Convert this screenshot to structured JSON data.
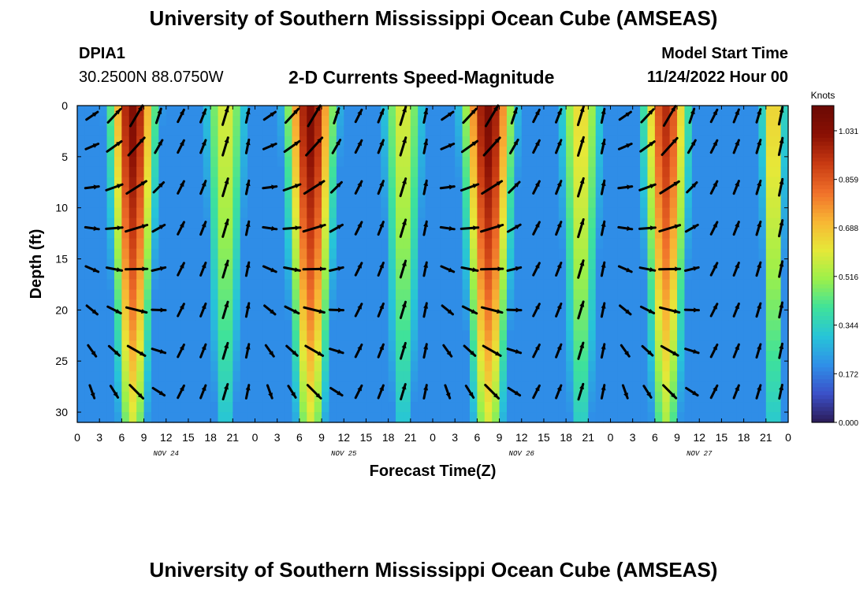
{
  "title": "University of Southern Mississippi Ocean Cube (AMSEAS)",
  "station": {
    "id": "DPIA1",
    "location": "30.2500N  88.0750W"
  },
  "subtitle": "2-D Currents Speed-Magnitude",
  "model_start": {
    "label": "Model Start Time",
    "value": "11/24/2022 Hour 00"
  },
  "footer_title": "University of Southern Mississippi Ocean Cube (AMSEAS)",
  "chart_data": {
    "type": "heatmap",
    "title": "2-D Currents Speed-Magnitude",
    "xlabel": "Forecast Time(Z)",
    "ylabel": "Depth (ft)",
    "xlim": [
      0,
      96
    ],
    "ylim": [
      0,
      31
    ],
    "x_ticks": [
      0,
      3,
      6,
      9,
      12,
      15,
      18,
      21,
      24,
      27,
      30,
      33,
      36,
      39,
      42,
      45,
      48,
      51,
      54,
      57,
      60,
      63,
      66,
      69,
      72,
      75,
      78,
      81,
      84,
      87,
      90,
      93,
      96
    ],
    "x_tick_labels": [
      "0",
      "3",
      "6",
      "9",
      "12",
      "15",
      "18",
      "21",
      "0",
      "3",
      "6",
      "9",
      "12",
      "15",
      "18",
      "21",
      "0",
      "3",
      "6",
      "9",
      "12",
      "15",
      "18",
      "21",
      "0",
      "3",
      "6",
      "9",
      "12",
      "15",
      "18",
      "21",
      "0"
    ],
    "y_ticks": [
      0,
      5,
      10,
      15,
      20,
      25,
      30
    ],
    "y_tick_labels": [
      "0",
      "5",
      "10",
      "15",
      "20",
      "25",
      "30"
    ],
    "day_labels": [
      {
        "hour": 12,
        "label": "NOV 24"
      },
      {
        "hour": 36,
        "label": "NOV 25"
      },
      {
        "hour": 60,
        "label": "NOV 26"
      },
      {
        "hour": 84,
        "label": "NOV 27"
      }
    ],
    "colorbar": {
      "title": "Knots",
      "min": 0.0,
      "max": 1.12,
      "ticks": [
        0.0,
        0.172,
        0.344,
        0.516,
        0.688,
        0.859,
        1.031
      ],
      "tick_labels": [
        "0.000",
        "0.172",
        "0.344",
        "0.516",
        "0.688",
        "0.859",
        "1.031"
      ],
      "stops": [
        "#2b1a55",
        "#3b50c8",
        "#2f8fe8",
        "#27c4d8",
        "#3fe29a",
        "#9df04a",
        "#e6e838",
        "#f8b534",
        "#f0702a",
        "#c83a12",
        "#8a1004",
        "#6a0a04"
      ]
    },
    "speed_peaks": [
      {
        "hour": 7.5,
        "knots": 1.05,
        "half_width_h": 3.2
      },
      {
        "hour": 20,
        "knots": 0.6,
        "half_width_h": 3.0
      },
      {
        "hour": 31.5,
        "knots": 1.05,
        "half_width_h": 3.4
      },
      {
        "hour": 44,
        "knots": 0.6,
        "half_width_h": 3.0
      },
      {
        "hour": 55.5,
        "knots": 1.06,
        "half_width_h": 3.5
      },
      {
        "hour": 68,
        "knots": 0.65,
        "half_width_h": 3.0
      },
      {
        "hour": 79.5,
        "knots": 0.95,
        "half_width_h": 3.2
      },
      {
        "hour": 94,
        "knots": 0.7,
        "half_width_h": 1.8
      }
    ],
    "vector_times": [
      2,
      5,
      8,
      11,
      14,
      17,
      20,
      23,
      26,
      29,
      32,
      35,
      38,
      41,
      44,
      47,
      50,
      53,
      56,
      59,
      62,
      65,
      68,
      71,
      74,
      77,
      80,
      83,
      86,
      89,
      92,
      95
    ],
    "vector_depths": [
      1,
      4,
      8,
      12,
      16,
      20,
      24,
      28
    ]
  }
}
